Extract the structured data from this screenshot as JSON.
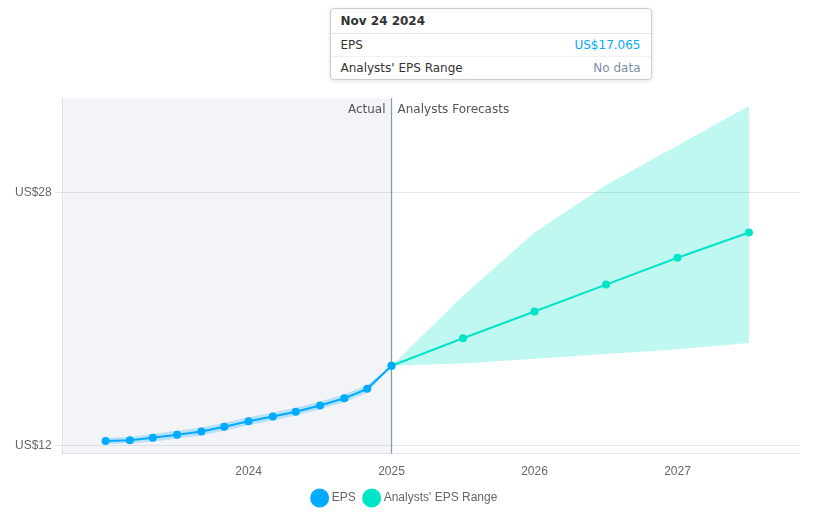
{
  "chart_data": {
    "type": "line",
    "xlim": [
      2022.7,
      2027.85
    ],
    "xticks": [
      2024,
      2025,
      2026,
      2027
    ],
    "ylim": [
      11.5,
      34.0
    ],
    "yticks": [
      {
        "value": 12,
        "label": "US$12"
      },
      {
        "value": 28,
        "label": "US$28"
      }
    ],
    "grid": true,
    "legend": "bottom",
    "divider_x": 2025.0,
    "annotations": [
      {
        "text": "Actual",
        "x": 2025.0,
        "side": "left"
      },
      {
        "text": "Analysts Forecasts",
        "x": 2025.0,
        "side": "right"
      }
    ],
    "tooltip": {
      "title": "Nov 24 2024",
      "rows": [
        {
          "label": "EPS",
          "value": "US$17.065",
          "color": "#00aaff"
        },
        {
          "label": "Analysts' EPS Range",
          "value": "No data",
          "color": "#7a8fa5"
        }
      ]
    },
    "series": [
      {
        "name": "EPS",
        "color": "#00aaff",
        "marker": "o",
        "x": [
          2023.0,
          2023.17,
          2023.33,
          2023.5,
          2023.67,
          2023.83,
          2024.0,
          2024.17,
          2024.33,
          2024.5,
          2024.67,
          2024.83,
          2025.0
        ],
        "values": [
          12.3,
          12.35,
          12.5,
          12.7,
          12.9,
          13.2,
          13.55,
          13.85,
          14.15,
          14.55,
          15.0,
          15.6,
          17.065
        ],
        "upper": [
          12.5,
          12.55,
          12.75,
          12.95,
          13.15,
          13.45,
          13.8,
          14.1,
          14.4,
          14.8,
          15.25,
          15.85,
          17.065
        ],
        "lower": [
          12.1,
          12.15,
          12.25,
          12.45,
          12.65,
          12.95,
          13.3,
          13.6,
          13.9,
          14.3,
          14.75,
          15.35,
          17.065
        ]
      },
      {
        "name": "Analysts' EPS Range",
        "color": "#00e5c8",
        "marker": "o",
        "x": [
          2025.0,
          2025.5,
          2026.0,
          2026.5,
          2027.0,
          2027.5
        ],
        "values": [
          17.065,
          18.8,
          20.5,
          22.2,
          23.9,
          25.5
        ],
        "upper": [
          17.065,
          21.5,
          25.5,
          28.5,
          31.0,
          33.5
        ],
        "lower": [
          17.065,
          17.2,
          17.5,
          17.8,
          18.1,
          18.5
        ]
      }
    ]
  }
}
